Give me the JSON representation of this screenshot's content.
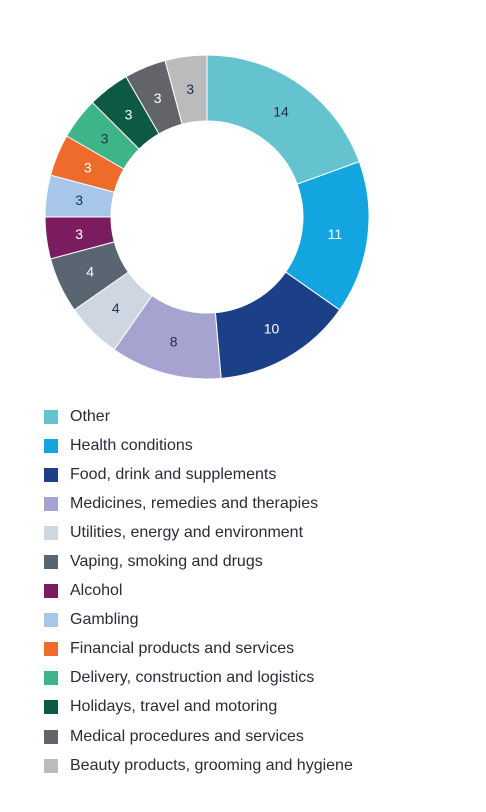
{
  "chart_data": {
    "type": "donut",
    "title": "",
    "categories": [
      "Other",
      "Health conditions",
      "Food, drink and supplements",
      "Medicines, remedies and therapies",
      "Utilities, energy and environment",
      "Vaping, smoking and drugs",
      "Alcohol",
      "Gambling",
      "Financial products and services",
      "Delivery, construction and logistics",
      "Holidays, travel and motoring",
      "Medical procedures and services",
      "Beauty products, grooming and hygiene"
    ],
    "values": [
      14,
      11,
      10,
      8,
      4,
      4,
      3,
      3,
      3,
      3,
      3,
      3,
      3
    ],
    "colors": [
      "#65c3cf",
      "#12a5e0",
      "#1b4088",
      "#a7a3d1",
      "#cdd6e1",
      "#596671",
      "#7b1c61",
      "#a7c6ea",
      "#ee6b2c",
      "#3db589",
      "#0d5943",
      "#626469",
      "#bbbbbb"
    ],
    "label_colors": [
      "#1e2f4f",
      "#ffffff",
      "#ffffff",
      "#1e2f4f",
      "#1e2f4f",
      "#ffffff",
      "#ffffff",
      "#1e2f4f",
      "#ffffff",
      "#1e2f4f",
      "#ffffff",
      "#ffffff",
      "#1e2f4f"
    ],
    "legend_position": "bottom"
  }
}
